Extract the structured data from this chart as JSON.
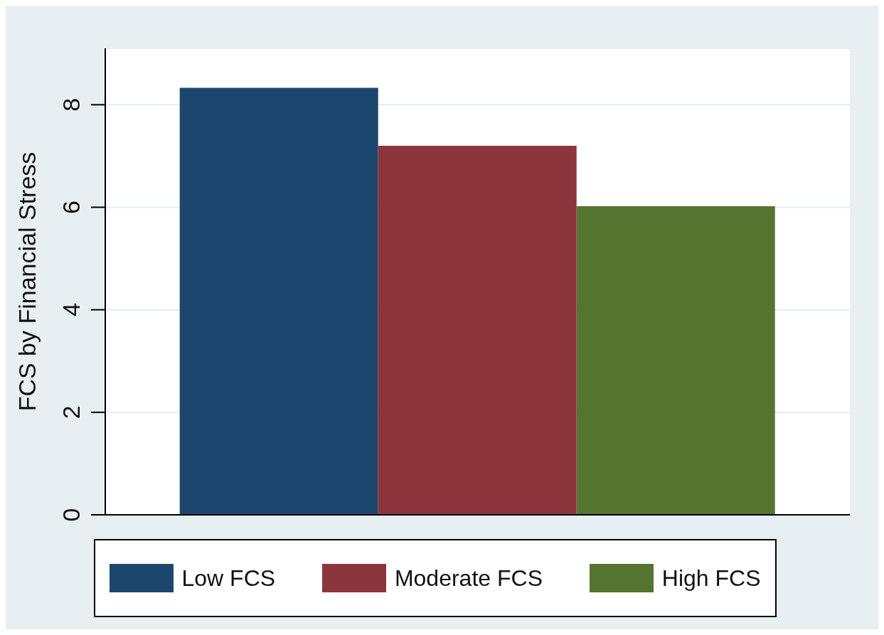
{
  "chart_data": {
    "type": "bar",
    "ylabel": "FCS by Financial Stress",
    "categories": [
      null
    ],
    "series": [
      {
        "name": "Low FCS",
        "color": "#1c466e",
        "values": [
          8.33
        ]
      },
      {
        "name": "Moderate FCS",
        "color": "#8c353d",
        "values": [
          7.2
        ]
      },
      {
        "name": "High FCS",
        "color": "#557430",
        "values": [
          6.02
        ]
      }
    ],
    "ylim": [
      0,
      9.1
    ],
    "yticks": [
      0,
      2,
      4,
      6,
      8
    ],
    "grid": "y",
    "legend": "bottom"
  }
}
